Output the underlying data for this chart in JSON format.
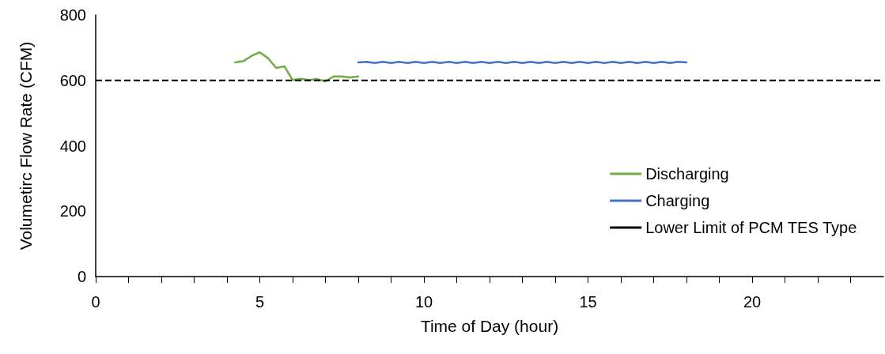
{
  "chart_data": {
    "type": "line",
    "xlabel": "Time of Day (hour)",
    "ylabel": "Volumetirc Flow Rate (CFM)",
    "xlim": [
      0,
      24
    ],
    "ylim": [
      0,
      800
    ],
    "xticks": [
      0,
      {
        "value": 1,
        "label": null
      },
      {
        "value": 2,
        "label": null
      },
      {
        "value": 3,
        "label": null
      },
      {
        "value": 4,
        "label": null
      },
      5,
      {
        "value": 6,
        "label": null
      },
      {
        "value": 7,
        "label": null
      },
      {
        "value": 8,
        "label": null
      },
      {
        "value": 9,
        "label": null
      },
      10,
      {
        "value": 11,
        "label": null
      },
      {
        "value": 12,
        "label": null
      },
      {
        "value": 13,
        "label": null
      },
      {
        "value": 14,
        "label": null
      },
      15,
      {
        "value": 16,
        "label": null
      },
      {
        "value": 17,
        "label": null
      },
      {
        "value": 18,
        "label": null
      },
      {
        "value": 19,
        "label": null
      },
      20,
      {
        "value": 21,
        "label": null
      },
      {
        "value": 22,
        "label": null
      },
      {
        "value": 23,
        "label": null
      }
    ],
    "yticks": [
      0,
      200,
      400,
      600,
      800
    ],
    "series": [
      {
        "name": "Discharging",
        "color": "#70ad47",
        "x": [
          4.25,
          4.5,
          4.75,
          5,
          5.25,
          5.5,
          5.75,
          6,
          6.25,
          6.5,
          6.75,
          7,
          7.25,
          7.5,
          7.75,
          8
        ],
        "values": [
          655,
          659,
          675,
          686,
          668,
          638,
          643,
          601,
          605,
          601,
          604,
          597,
          612,
          612,
          609,
          612
        ]
      },
      {
        "name": "Charging",
        "color": "#4472c4",
        "x": [
          8,
          8.25,
          8.5,
          8.75,
          9,
          9.25,
          9.5,
          9.75,
          10,
          10.25,
          10.5,
          10.75,
          11,
          11.25,
          11.5,
          11.75,
          12,
          12.25,
          12.5,
          12.75,
          13,
          13.25,
          13.5,
          13.75,
          14,
          14.25,
          14.5,
          14.75,
          15,
          15.25,
          15.5,
          15.75,
          16,
          16.25,
          16.5,
          16.75,
          17,
          17.25,
          17.5,
          17.75,
          18
        ],
        "values": [
          655,
          657,
          653,
          657,
          653,
          657,
          653,
          657,
          653,
          657,
          653,
          657,
          653,
          657,
          653,
          657,
          653,
          657,
          653,
          657,
          653,
          657,
          653,
          657,
          653,
          657,
          653,
          657,
          653,
          657,
          653,
          657,
          653,
          657,
          653,
          657,
          653,
          657,
          653,
          657,
          655
        ]
      }
    ],
    "ref_lines": [
      {
        "axis": "y",
        "value": 600,
        "label": "Lower Limit of PCM TES Type",
        "color": "#000000",
        "line_style": "dashed"
      }
    ],
    "legend": "right",
    "grid": false,
    "marker": "none",
    "line_style": "solid"
  }
}
